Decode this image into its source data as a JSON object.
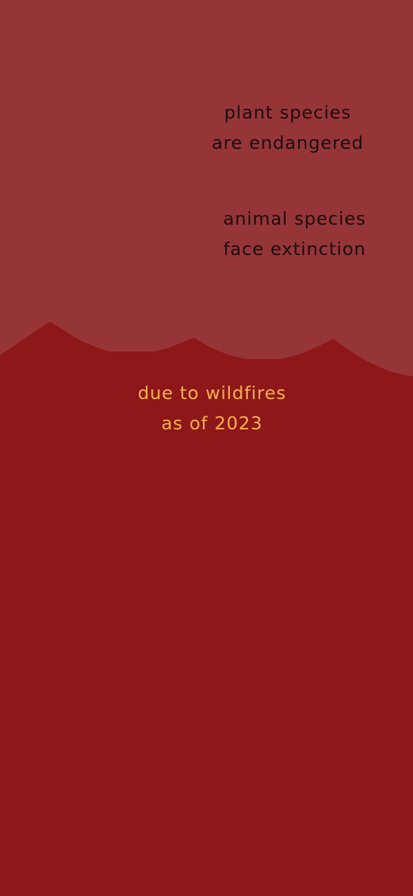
{
  "colors": {
    "sky": "#963538",
    "hills": "#8e1719",
    "dark_text": "#1b0d0e",
    "accent_text": "#f6b04c"
  },
  "plant_statement": {
    "line1": "plant species",
    "line2": "are endangered"
  },
  "animal_statement": {
    "line1": "animal species",
    "line2": "face extinction"
  },
  "cause_statement": {
    "line1": "due to wildfires",
    "line2": "as of 2023"
  }
}
